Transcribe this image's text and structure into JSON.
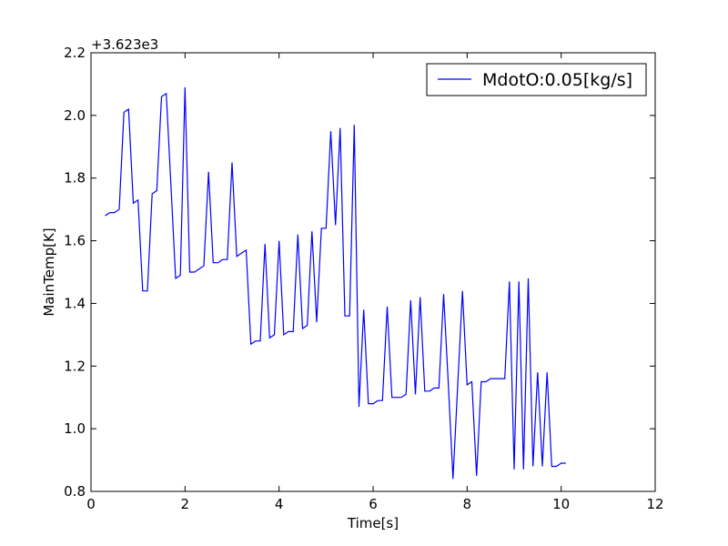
{
  "chart_data": {
    "type": "line",
    "title": "",
    "xlabel": "Time[s]",
    "ylabel": "MainTemp[K]",
    "y_offset_label": "+3.623e3",
    "xlim": [
      0,
      12
    ],
    "ylim": [
      0.8,
      2.2
    ],
    "xticks": [
      "0",
      "2",
      "4",
      "6",
      "8",
      "10",
      "12"
    ],
    "yticks": [
      "0.8",
      "1.0",
      "1.2",
      "1.4",
      "1.6",
      "1.8",
      "2.0",
      "2.2"
    ],
    "grid": true,
    "legend_position": "top-right",
    "series": [
      {
        "name": "MdotO:0.05[kg/s]",
        "color": "#0000ff",
        "x": [
          0.3,
          0.4,
          0.5,
          0.6,
          0.7,
          0.8,
          0.9,
          1.0,
          1.1,
          1.2,
          1.3,
          1.4,
          1.5,
          1.6,
          1.7,
          1.8,
          1.9,
          2.0,
          2.1,
          2.2,
          2.3,
          2.4,
          2.5,
          2.6,
          2.7,
          2.8,
          2.9,
          3.0,
          3.1,
          3.2,
          3.3,
          3.4,
          3.5,
          3.6,
          3.7,
          3.8,
          3.9,
          4.0,
          4.1,
          4.2,
          4.3,
          4.4,
          4.5,
          4.6,
          4.7,
          4.8,
          4.9,
          5.0,
          5.1,
          5.2,
          5.3,
          5.4,
          5.5,
          5.6,
          5.7,
          5.8,
          5.9,
          6.0,
          6.1,
          6.2,
          6.3,
          6.4,
          6.5,
          6.6,
          6.7,
          6.8,
          6.9,
          7.0,
          7.1,
          7.2,
          7.3,
          7.4,
          7.5,
          7.6,
          7.7,
          7.8,
          7.9,
          8.0,
          8.1,
          8.2,
          8.3,
          8.4,
          8.5,
          8.6,
          8.7,
          8.8,
          8.9,
          9.0,
          9.1,
          9.2,
          9.3,
          9.4,
          9.5,
          9.6,
          9.7,
          9.8,
          9.9,
          10.0,
          10.1
        ],
        "y": [
          1.68,
          1.69,
          1.69,
          1.7,
          2.01,
          2.02,
          1.72,
          1.73,
          1.44,
          1.44,
          1.75,
          1.76,
          2.06,
          2.07,
          1.78,
          1.48,
          1.49,
          2.09,
          1.5,
          1.5,
          1.51,
          1.52,
          1.82,
          1.53,
          1.53,
          1.54,
          1.54,
          1.85,
          1.55,
          1.56,
          1.57,
          1.27,
          1.28,
          1.28,
          1.59,
          1.29,
          1.3,
          1.6,
          1.3,
          1.31,
          1.31,
          1.62,
          1.32,
          1.33,
          1.63,
          1.34,
          1.64,
          1.64,
          1.95,
          1.65,
          1.96,
          1.36,
          1.36,
          1.97,
          1.07,
          1.38,
          1.08,
          1.08,
          1.09,
          1.09,
          1.39,
          1.1,
          1.1,
          1.1,
          1.11,
          1.41,
          1.11,
          1.42,
          1.12,
          1.12,
          1.13,
          1.13,
          1.43,
          1.14,
          0.84,
          1.14,
          1.44,
          1.14,
          1.15,
          0.85,
          1.15,
          1.15,
          1.16,
          1.16,
          1.16,
          1.16,
          1.47,
          0.87,
          1.47,
          0.87,
          1.48,
          0.88,
          1.18,
          0.88,
          1.18,
          0.88,
          0.88,
          0.89,
          0.89
        ]
      }
    ]
  }
}
